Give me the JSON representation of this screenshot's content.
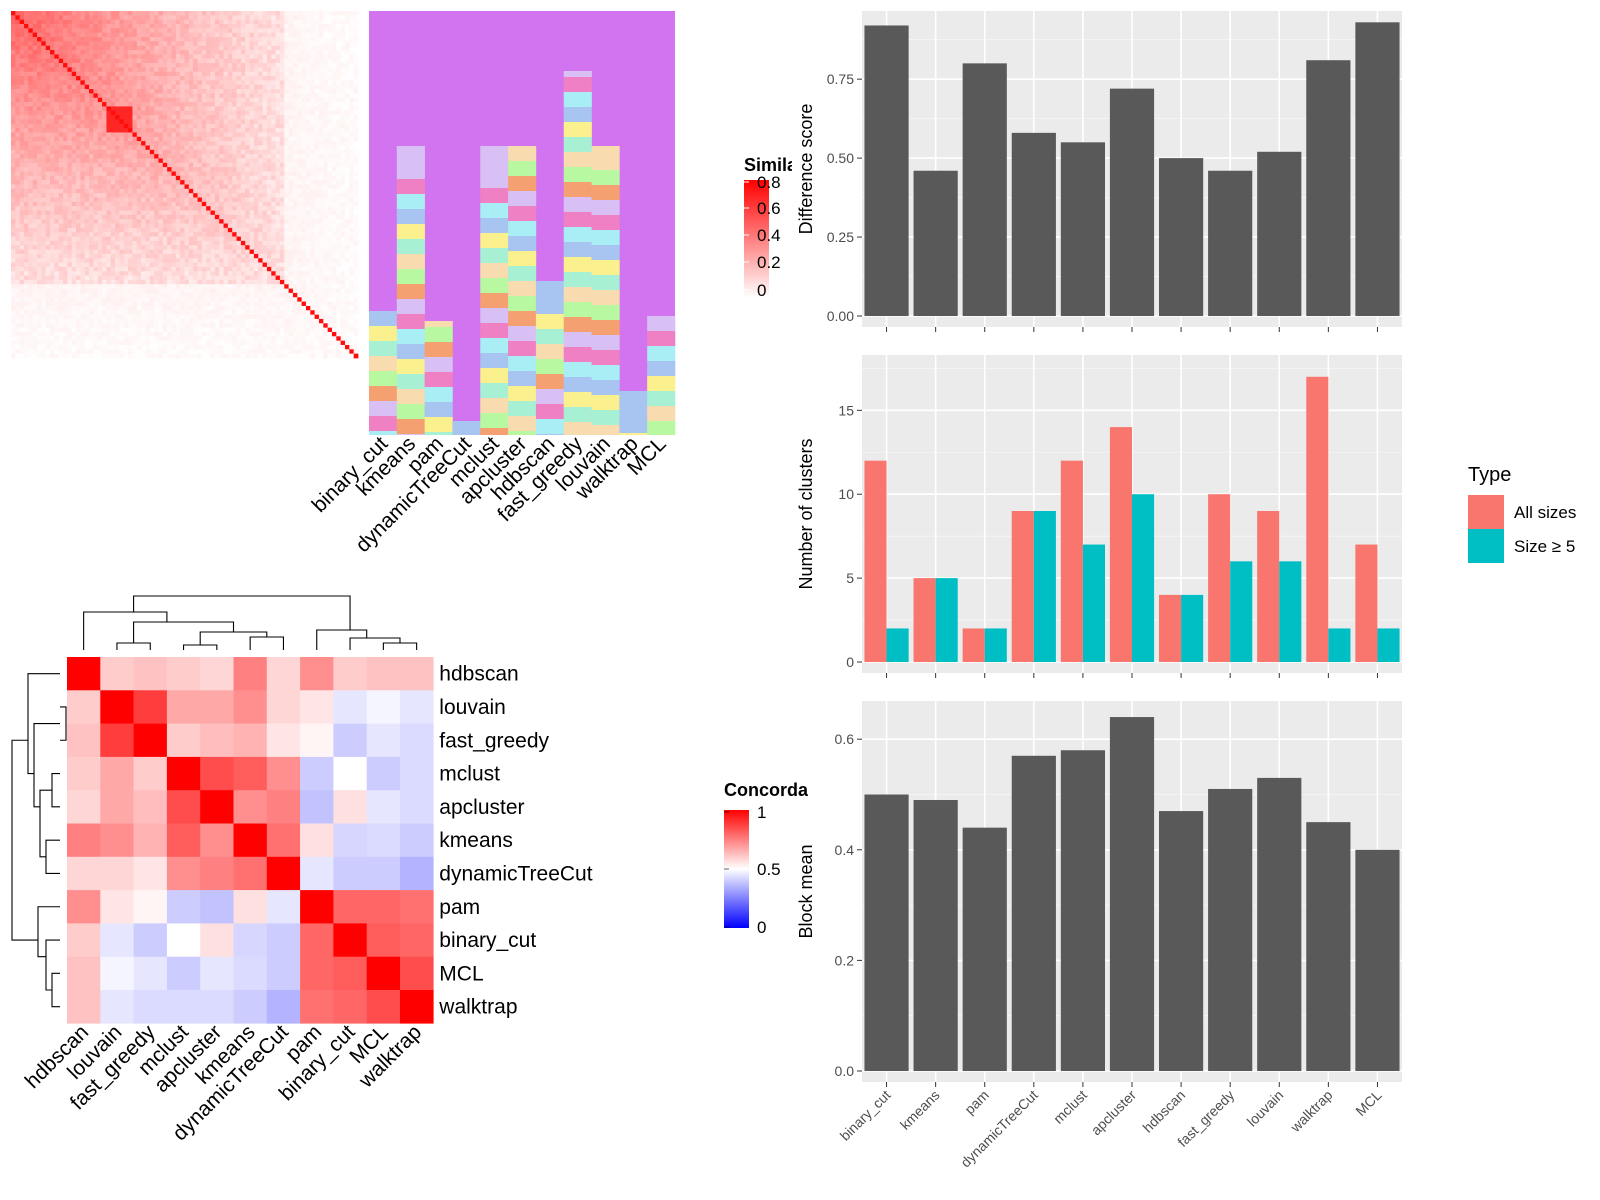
{
  "chart_data": [
    {
      "type": "heatmap",
      "name": "similarity-matrix",
      "legend": {
        "title": "Similarity",
        "ticks": [
          "0.8",
          "0.6",
          "0.4",
          "0.2",
          "0"
        ],
        "colors": [
          "#ffffff",
          "#ff0000"
        ]
      },
      "columns": [
        "binary_cut",
        "kmeans",
        "pam",
        "dynamicTreeCut",
        "mclust",
        "apcluster",
        "hdbscan",
        "fast_greedy",
        "louvain",
        "walktrap",
        "MCL"
      ],
      "annotation_note": "cluster-membership annotation columns, one per method"
    },
    {
      "type": "heatmap",
      "name": "concordance",
      "legend": {
        "title": "Concordance",
        "ticks": [
          "1",
          "0.5",
          "0"
        ],
        "colors": [
          "#0000ff",
          "#ffffff",
          "#ff0000"
        ]
      },
      "rows": [
        "hdbscan",
        "louvain",
        "fast_greedy",
        "mclust",
        "apcluster",
        "kmeans",
        "dynamicTreeCut",
        "pam",
        "binary_cut",
        "MCL",
        "walktrap"
      ],
      "columns": [
        "hdbscan",
        "louvain",
        "fast_greedy",
        "mclust",
        "apcluster",
        "kmeans",
        "dynamicTreeCut",
        "pam",
        "binary_cut",
        "MCL",
        "walktrap"
      ],
      "values": [
        [
          1.0,
          0.6,
          0.62,
          0.6,
          0.58,
          0.75,
          0.58,
          0.72,
          0.6,
          0.62,
          0.62
        ],
        [
          0.6,
          1.0,
          0.88,
          0.67,
          0.67,
          0.72,
          0.58,
          0.55,
          0.45,
          0.48,
          0.45
        ],
        [
          0.62,
          0.88,
          1.0,
          0.6,
          0.63,
          0.65,
          0.55,
          0.52,
          0.4,
          0.45,
          0.43
        ],
        [
          0.6,
          0.67,
          0.6,
          1.0,
          0.85,
          0.82,
          0.72,
          0.4,
          0.5,
          0.4,
          0.43
        ],
        [
          0.58,
          0.67,
          0.63,
          0.85,
          1.0,
          0.72,
          0.75,
          0.38,
          0.56,
          0.45,
          0.43
        ],
        [
          0.75,
          0.72,
          0.65,
          0.82,
          0.72,
          1.0,
          0.78,
          0.56,
          0.42,
          0.43,
          0.4
        ],
        [
          0.58,
          0.58,
          0.55,
          0.72,
          0.75,
          0.78,
          1.0,
          0.45,
          0.4,
          0.4,
          0.35
        ],
        [
          0.72,
          0.55,
          0.52,
          0.4,
          0.38,
          0.56,
          0.45,
          1.0,
          0.8,
          0.8,
          0.78
        ],
        [
          0.6,
          0.45,
          0.4,
          0.5,
          0.56,
          0.42,
          0.4,
          0.8,
          1.0,
          0.82,
          0.8
        ],
        [
          0.62,
          0.48,
          0.45,
          0.4,
          0.45,
          0.43,
          0.4,
          0.8,
          0.82,
          1.0,
          0.85
        ],
        [
          0.62,
          0.45,
          0.43,
          0.43,
          0.43,
          0.4,
          0.35,
          0.78,
          0.8,
          0.85,
          1.0
        ]
      ]
    },
    {
      "type": "bar",
      "name": "difference-score",
      "categories": [
        "binary_cut",
        "kmeans",
        "pam",
        "dynamicTreeCut",
        "mclust",
        "apcluster",
        "hdbscan",
        "fast_greedy",
        "louvain",
        "walktrap",
        "MCL"
      ],
      "values": [
        0.92,
        0.46,
        0.8,
        0.58,
        0.55,
        0.72,
        0.5,
        0.46,
        0.52,
        0.81,
        0.93
      ],
      "ylabel": "Difference score",
      "ylim": [
        0,
        0.95
      ],
      "yticks": [
        "0.00",
        "0.25",
        "0.50",
        "0.75"
      ],
      "bar_color": "#595959"
    },
    {
      "type": "bar",
      "name": "number-of-clusters",
      "categories": [
        "binary_cut",
        "kmeans",
        "pam",
        "dynamicTreeCut",
        "mclust",
        "apcluster",
        "hdbscan",
        "fast_greedy",
        "louvain",
        "walktrap",
        "MCL"
      ],
      "series": [
        {
          "name": "All sizes",
          "color": "#F8766D",
          "values": [
            12,
            5,
            2,
            9,
            12,
            14,
            4,
            10,
            9,
            17,
            7
          ]
        },
        {
          "name": "Size ≥ 5",
          "color": "#00BFC4",
          "values": [
            2,
            5,
            2,
            9,
            7,
            10,
            4,
            6,
            6,
            2,
            2
          ]
        }
      ],
      "ylabel": "Number of clusters",
      "ylim": [
        0,
        18
      ],
      "yticks": [
        "0",
        "5",
        "10",
        "15"
      ],
      "legend": {
        "title": "Type",
        "position": "right"
      }
    },
    {
      "type": "bar",
      "name": "block-mean",
      "categories": [
        "binary_cut",
        "kmeans",
        "pam",
        "dynamicTreeCut",
        "mclust",
        "apcluster",
        "hdbscan",
        "fast_greedy",
        "louvain",
        "walktrap",
        "MCL"
      ],
      "values": [
        0.5,
        0.49,
        0.44,
        0.57,
        0.58,
        0.64,
        0.47,
        0.51,
        0.53,
        0.45,
        0.4
      ],
      "ylabel": "Block mean",
      "ylim": [
        0,
        0.66
      ],
      "yticks": [
        "0.0",
        "0.2",
        "0.4",
        "0.6"
      ],
      "bar_color": "#595959"
    }
  ]
}
